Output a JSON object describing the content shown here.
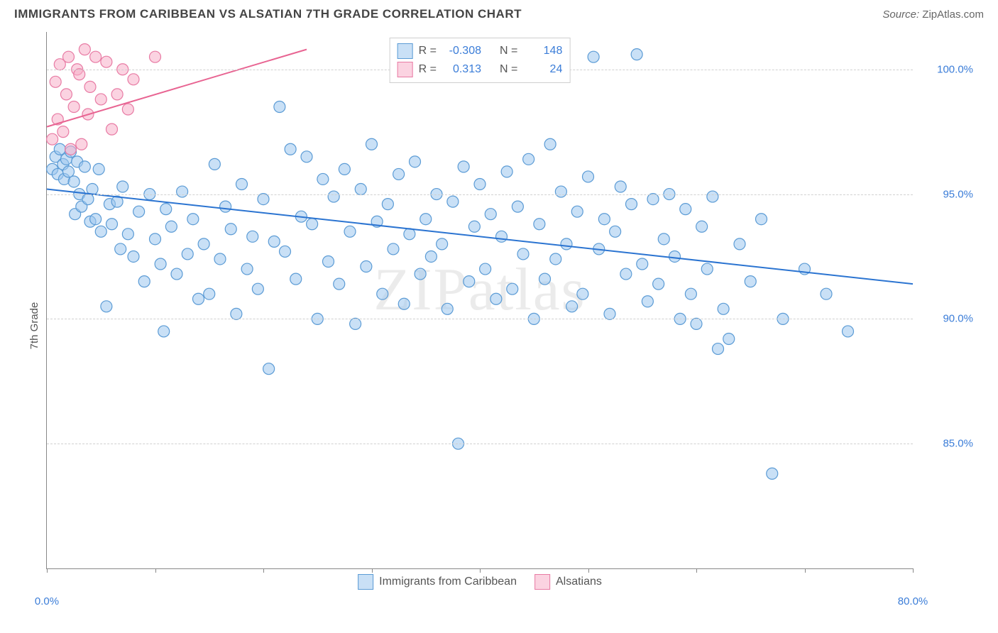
{
  "header": {
    "title": "IMMIGRANTS FROM CARIBBEAN VS ALSATIAN 7TH GRADE CORRELATION CHART",
    "source_label": "Source:",
    "source_name": "ZipAtlas.com"
  },
  "chart": {
    "type": "scatter",
    "ylabel": "7th Grade",
    "watermark": "ZIPatlas",
    "background_color": "#ffffff",
    "grid_color": "#d0d0d0",
    "axis_color": "#888888",
    "xlim": [
      0,
      80
    ],
    "ylim": [
      80,
      101.5
    ],
    "xticks": [
      0,
      10,
      20,
      30,
      40,
      50,
      60,
      70,
      80
    ],
    "xtick_labels": {
      "0": "0.0%",
      "80": "80.0%"
    },
    "yticks": [
      85,
      90,
      95,
      100
    ],
    "ytick_labels": {
      "85": "85.0%",
      "90": "90.0%",
      "95": "95.0%",
      "100": "100.0%"
    },
    "tick_label_color": "#3b7dd8",
    "axis_label_color": "#555555",
    "marker_radius": 8,
    "marker_stroke_width": 1.2,
    "line_width": 2,
    "series": [
      {
        "name": "Immigrants from Caribbean",
        "fill": "rgba(157,198,238,0.55)",
        "stroke": "#5b9bd5",
        "line_color": "#2b74d1",
        "R": "-0.308",
        "N": "148",
        "trend": {
          "x1": 0,
          "y1": 95.2,
          "x2": 80,
          "y2": 91.4
        },
        "points": [
          [
            0.5,
            96.0
          ],
          [
            0.8,
            96.5
          ],
          [
            1.0,
            95.8
          ],
          [
            1.2,
            96.8
          ],
          [
            1.5,
            96.2
          ],
          [
            1.6,
            95.6
          ],
          [
            1.8,
            96.4
          ],
          [
            2.0,
            95.9
          ],
          [
            2.2,
            96.7
          ],
          [
            2.5,
            95.5
          ],
          [
            2.6,
            94.2
          ],
          [
            2.8,
            96.3
          ],
          [
            3.0,
            95.0
          ],
          [
            3.2,
            94.5
          ],
          [
            3.5,
            96.1
          ],
          [
            3.8,
            94.8
          ],
          [
            4.0,
            93.9
          ],
          [
            4.2,
            95.2
          ],
          [
            4.5,
            94.0
          ],
          [
            4.8,
            96.0
          ],
          [
            5.0,
            93.5
          ],
          [
            5.5,
            90.5
          ],
          [
            5.8,
            94.6
          ],
          [
            6.0,
            93.8
          ],
          [
            6.5,
            94.7
          ],
          [
            6.8,
            92.8
          ],
          [
            7.0,
            95.3
          ],
          [
            7.5,
            93.4
          ],
          [
            8.0,
            92.5
          ],
          [
            8.5,
            94.3
          ],
          [
            9.0,
            91.5
          ],
          [
            9.5,
            95.0
          ],
          [
            10.0,
            93.2
          ],
          [
            10.5,
            92.2
          ],
          [
            10.8,
            89.5
          ],
          [
            11.0,
            94.4
          ],
          [
            11.5,
            93.7
          ],
          [
            12.0,
            91.8
          ],
          [
            12.5,
            95.1
          ],
          [
            13.0,
            92.6
          ],
          [
            13.5,
            94.0
          ],
          [
            14.0,
            90.8
          ],
          [
            14.5,
            93.0
          ],
          [
            15.0,
            91.0
          ],
          [
            15.5,
            96.2
          ],
          [
            16.0,
            92.4
          ],
          [
            16.5,
            94.5
          ],
          [
            17.0,
            93.6
          ],
          [
            17.5,
            90.2
          ],
          [
            18.0,
            95.4
          ],
          [
            18.5,
            92.0
          ],
          [
            19.0,
            93.3
          ],
          [
            19.5,
            91.2
          ],
          [
            20.0,
            94.8
          ],
          [
            20.5,
            88.0
          ],
          [
            21.0,
            93.1
          ],
          [
            21.5,
            98.5
          ],
          [
            22.0,
            92.7
          ],
          [
            22.5,
            96.8
          ],
          [
            23.0,
            91.6
          ],
          [
            23.5,
            94.1
          ],
          [
            24.0,
            96.5
          ],
          [
            24.5,
            93.8
          ],
          [
            25.0,
            90.0
          ],
          [
            25.5,
            95.6
          ],
          [
            26.0,
            92.3
          ],
          [
            26.5,
            94.9
          ],
          [
            27.0,
            91.4
          ],
          [
            27.5,
            96.0
          ],
          [
            28.0,
            93.5
          ],
          [
            28.5,
            89.8
          ],
          [
            29.0,
            95.2
          ],
          [
            29.5,
            92.1
          ],
          [
            30.0,
            97.0
          ],
          [
            30.5,
            93.9
          ],
          [
            31.0,
            91.0
          ],
          [
            31.5,
            94.6
          ],
          [
            32.0,
            92.8
          ],
          [
            32.5,
            95.8
          ],
          [
            33.0,
            90.6
          ],
          [
            33.5,
            93.4
          ],
          [
            34.0,
            96.3
          ],
          [
            34.5,
            91.8
          ],
          [
            35.0,
            94.0
          ],
          [
            35.5,
            92.5
          ],
          [
            36.0,
            95.0
          ],
          [
            36.5,
            93.0
          ],
          [
            37.0,
            90.4
          ],
          [
            37.5,
            94.7
          ],
          [
            38.0,
            85.0
          ],
          [
            38.5,
            96.1
          ],
          [
            39.0,
            91.5
          ],
          [
            39.5,
            93.7
          ],
          [
            40.0,
            95.4
          ],
          [
            40.5,
            92.0
          ],
          [
            41.0,
            94.2
          ],
          [
            41.5,
            90.8
          ],
          [
            42.0,
            93.3
          ],
          [
            42.5,
            95.9
          ],
          [
            43.0,
            91.2
          ],
          [
            43.5,
            94.5
          ],
          [
            44.0,
            92.6
          ],
          [
            44.5,
            96.4
          ],
          [
            45.0,
            90.0
          ],
          [
            45.5,
            93.8
          ],
          [
            46.0,
            91.6
          ],
          [
            46.5,
            97.0
          ],
          [
            47.0,
            92.4
          ],
          [
            47.5,
            95.1
          ],
          [
            48.0,
            93.0
          ],
          [
            48.5,
            90.5
          ],
          [
            49.0,
            94.3
          ],
          [
            49.5,
            91.0
          ],
          [
            50.0,
            95.7
          ],
          [
            50.5,
            100.5
          ],
          [
            51.0,
            92.8
          ],
          [
            51.5,
            94.0
          ],
          [
            52.0,
            90.2
          ],
          [
            52.5,
            93.5
          ],
          [
            53.0,
            95.3
          ],
          [
            53.5,
            91.8
          ],
          [
            54.0,
            94.6
          ],
          [
            54.5,
            100.6
          ],
          [
            55.0,
            92.2
          ],
          [
            55.5,
            90.7
          ],
          [
            56.0,
            94.8
          ],
          [
            56.5,
            91.4
          ],
          [
            57.0,
            93.2
          ],
          [
            57.5,
            95.0
          ],
          [
            58.0,
            92.5
          ],
          [
            58.5,
            90.0
          ],
          [
            59.0,
            94.4
          ],
          [
            59.5,
            91.0
          ],
          [
            60.0,
            89.8
          ],
          [
            60.5,
            93.7
          ],
          [
            61.0,
            92.0
          ],
          [
            61.5,
            94.9
          ],
          [
            62.0,
            88.8
          ],
          [
            62.5,
            90.4
          ],
          [
            63.0,
            89.2
          ],
          [
            64.0,
            93.0
          ],
          [
            65.0,
            91.5
          ],
          [
            66.0,
            94.0
          ],
          [
            67.0,
            83.8
          ],
          [
            68.0,
            90.0
          ],
          [
            70.0,
            92.0
          ],
          [
            72.0,
            91.0
          ],
          [
            74.0,
            89.5
          ]
        ]
      },
      {
        "name": "Alsatians",
        "fill": "rgba(248,175,200,0.55)",
        "stroke": "#e87ba4",
        "line_color": "#e86492",
        "R": "0.313",
        "N": "24",
        "trend": {
          "x1": 0,
          "y1": 97.7,
          "x2": 24,
          "y2": 100.8
        },
        "points": [
          [
            0.5,
            97.2
          ],
          [
            0.8,
            99.5
          ],
          [
            1.0,
            98.0
          ],
          [
            1.2,
            100.2
          ],
          [
            1.5,
            97.5
          ],
          [
            1.8,
            99.0
          ],
          [
            2.0,
            100.5
          ],
          [
            2.2,
            96.8
          ],
          [
            2.5,
            98.5
          ],
          [
            2.8,
            100.0
          ],
          [
            3.0,
            99.8
          ],
          [
            3.2,
            97.0
          ],
          [
            3.5,
            100.8
          ],
          [
            3.8,
            98.2
          ],
          [
            4.0,
            99.3
          ],
          [
            4.5,
            100.5
          ],
          [
            5.0,
            98.8
          ],
          [
            5.5,
            100.3
          ],
          [
            6.0,
            97.6
          ],
          [
            6.5,
            99.0
          ],
          [
            7.0,
            100.0
          ],
          [
            7.5,
            98.4
          ],
          [
            8.0,
            99.6
          ],
          [
            10.0,
            100.5
          ]
        ]
      }
    ],
    "legend_top": {
      "border_color": "#cfcfcf",
      "background": "#ffffff",
      "r_label": "R =",
      "n_label": "N ="
    },
    "legend_bottom": {
      "items": [
        "Immigrants from Caribbean",
        "Alsatians"
      ]
    }
  }
}
